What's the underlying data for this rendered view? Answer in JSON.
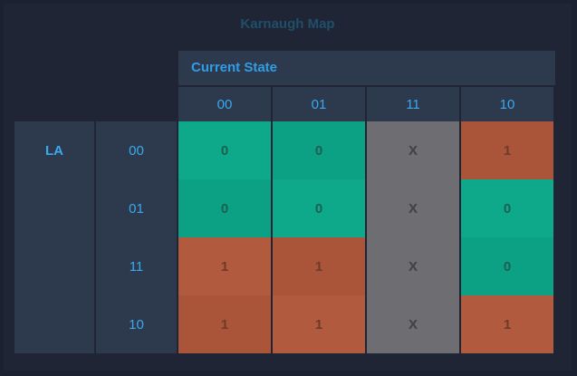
{
  "title": "Karnaugh Map",
  "column_variable": "Current State",
  "row_variable": "LA",
  "column_headers": [
    "00",
    "01",
    "11",
    "10"
  ],
  "row_headers": [
    "00",
    "01",
    "11",
    "10"
  ],
  "cells": [
    [
      "0",
      "0",
      "X",
      "1"
    ],
    [
      "0",
      "0",
      "X",
      "0"
    ],
    [
      "1",
      "1",
      "X",
      "0"
    ],
    [
      "1",
      "1",
      "X",
      "1"
    ]
  ],
  "colors": {
    "zero": "#0ea98a",
    "one": "#b25a3d",
    "dont_care": "#6e6e72",
    "header_bg": "#2d3a4e",
    "header_text": "#39a9ef"
  }
}
